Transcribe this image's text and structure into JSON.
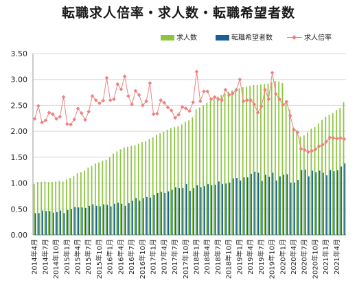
{
  "chart_data": {
    "type": "bar+line",
    "title": "転職求人倍率・求人数・転職希望者数",
    "categories": [
      "2014年4月",
      "2014年5月",
      "2014年6月",
      "2014年7月",
      "2014年8月",
      "2014年9月",
      "2014年10月",
      "2014年11月",
      "2014年12月",
      "2015年1月",
      "2015年2月",
      "2015年3月",
      "2015年4月",
      "2015年5月",
      "2015年6月",
      "2015年7月",
      "2015年8月",
      "2015年9月",
      "2015年10月",
      "2015年11月",
      "2015年12月",
      "2016年1月",
      "2016年2月",
      "2016年3月",
      "2016年4月",
      "2016年5月",
      "2016年6月",
      "2016年7月",
      "2016年8月",
      "2016年9月",
      "2016年10月",
      "2016年11月",
      "2016年12月",
      "2017年1月",
      "2017年2月",
      "2017年3月",
      "2017年4月",
      "2017年5月",
      "2017年6月",
      "2017年7月",
      "2017年8月",
      "2017年9月",
      "2017年10月",
      "2017年11月",
      "2017年12月",
      "2018年1月",
      "2018年2月",
      "2018年3月",
      "2018年4月",
      "2018年5月",
      "2018年6月",
      "2018年7月",
      "2018年8月",
      "2018年9月",
      "2018年10月",
      "2018年11月",
      "2018年12月",
      "2019年1月",
      "2019年2月",
      "2019年3月",
      "2019年4月",
      "2019年5月",
      "2019年6月",
      "2019年7月",
      "2019年8月",
      "2019年9月",
      "2019年10月",
      "2019年11月",
      "2019年12月",
      "2020年1月",
      "2020年2月",
      "2020年3月",
      "2020年4月",
      "2020年5月",
      "2020年6月",
      "2020年7月",
      "2020年8月",
      "2020年9月",
      "2020年10月",
      "2020年11月",
      "2020年12月",
      "2021年1月",
      "2021年2月",
      "2021年3月",
      "2021年4月",
      "2021年5月",
      "2021年6月"
    ],
    "tick_labels": [
      "2014年4月",
      "2014年7月",
      "2014年10月",
      "2015年1月",
      "2015年4月",
      "2015年7月",
      "2015年10月",
      "2016年1月",
      "2016年4月",
      "2016年7月",
      "2016年10月",
      "2017年1月",
      "2017年4月",
      "2017年7月",
      "2017年10月",
      "2018年1月",
      "2018年4月",
      "2018年7月",
      "2018年10月",
      "2019年1月",
      "2019年4月",
      "2019年7月",
      "2019年10月",
      "2020年1月",
      "2020年4月",
      "2020年7月",
      "2020年10月",
      "2021年1月",
      "2021年4月"
    ],
    "series": [
      {
        "name": "求人数",
        "kind": "bar",
        "color": "#8cc63f",
        "values": [
          0.98,
          1.02,
          1.02,
          1.03,
          1.02,
          1.02,
          1.03,
          1.04,
          1.03,
          1.07,
          1.1,
          1.14,
          1.19,
          1.21,
          1.24,
          1.3,
          1.33,
          1.38,
          1.4,
          1.43,
          1.45,
          1.5,
          1.57,
          1.61,
          1.65,
          1.69,
          1.7,
          1.72,
          1.73,
          1.76,
          1.79,
          1.81,
          1.85,
          1.88,
          1.93,
          1.96,
          1.99,
          2.03,
          2.06,
          2.08,
          2.1,
          2.13,
          2.18,
          2.21,
          2.27,
          2.42,
          2.46,
          2.5,
          2.55,
          2.59,
          2.63,
          2.67,
          2.7,
          2.73,
          2.76,
          2.79,
          2.8,
          2.83,
          2.85,
          2.86,
          2.88,
          2.89,
          2.89,
          2.9,
          2.91,
          2.92,
          2.95,
          2.97,
          2.96,
          2.93,
          2.6,
          2.42,
          2.07,
          2.02,
          1.9,
          1.92,
          1.98,
          2.05,
          2.08,
          2.15,
          2.22,
          2.28,
          2.32,
          2.35,
          2.41,
          2.45,
          2.56
        ]
      },
      {
        "name": "転職希望者数",
        "kind": "bar",
        "color": "#1a5f96",
        "values": [
          0.42,
          0.42,
          0.47,
          0.46,
          0.46,
          0.43,
          0.44,
          0.47,
          0.42,
          0.48,
          0.5,
          0.54,
          0.53,
          0.53,
          0.52,
          0.56,
          0.59,
          0.56,
          0.55,
          0.59,
          0.58,
          0.55,
          0.6,
          0.62,
          0.6,
          0.56,
          0.61,
          0.66,
          0.71,
          0.66,
          0.71,
          0.73,
          0.72,
          0.77,
          0.81,
          0.83,
          0.81,
          0.84,
          0.87,
          0.92,
          0.9,
          0.9,
          0.98,
          0.85,
          0.9,
          0.96,
          0.92,
          0.94,
          0.98,
          0.96,
          0.97,
          1.03,
          0.98,
          0.99,
          1.01,
          1.09,
          1.1,
          1.05,
          1.11,
          1.11,
          1.18,
          1.22,
          1.2,
          1.04,
          1.16,
          1.12,
          1.2,
          1.05,
          1.13,
          1.16,
          1.17,
          1.01,
          1.01,
          1.06,
          1.25,
          1.26,
          1.13,
          1.24,
          1.21,
          1.24,
          1.2,
          1.15,
          1.25,
          1.23,
          1.25,
          1.32,
          1.38
        ]
      },
      {
        "name": "求人倍率",
        "kind": "line",
        "color": "#f08080",
        "values": [
          2.24,
          2.49,
          2.17,
          2.21,
          2.36,
          2.33,
          2.24,
          2.28,
          2.66,
          2.14,
          2.13,
          2.23,
          2.44,
          2.35,
          2.22,
          2.38,
          2.68,
          2.6,
          2.54,
          2.59,
          3.03,
          2.6,
          2.62,
          2.91,
          2.81,
          3.06,
          2.68,
          2.52,
          2.78,
          2.7,
          2.5,
          2.58,
          2.93,
          2.33,
          2.34,
          2.6,
          2.55,
          2.46,
          2.4,
          2.26,
          2.32,
          2.47,
          2.44,
          2.39,
          2.56,
          3.15,
          2.58,
          2.77,
          2.77,
          2.62,
          2.66,
          2.62,
          2.6,
          2.8,
          2.7,
          2.73,
          2.8,
          3.0,
          2.58,
          2.6,
          2.6,
          2.52,
          2.36,
          2.48,
          2.8,
          2.62,
          3.13,
          2.72,
          2.62,
          2.51,
          2.57,
          2.3,
          2.03,
          1.98,
          1.66,
          1.64,
          1.6,
          1.62,
          1.65,
          1.71,
          1.74,
          1.8,
          1.88,
          1.87,
          1.86,
          1.87,
          1.85
        ]
      }
    ],
    "ylim": [
      0,
      3.5
    ],
    "yticks": [
      "0.00",
      "0.50",
      "1.00",
      "1.50",
      "2.00",
      "2.50",
      "3.00",
      "3.50"
    ],
    "grid": "horizontal",
    "legend_position": "top-right"
  }
}
